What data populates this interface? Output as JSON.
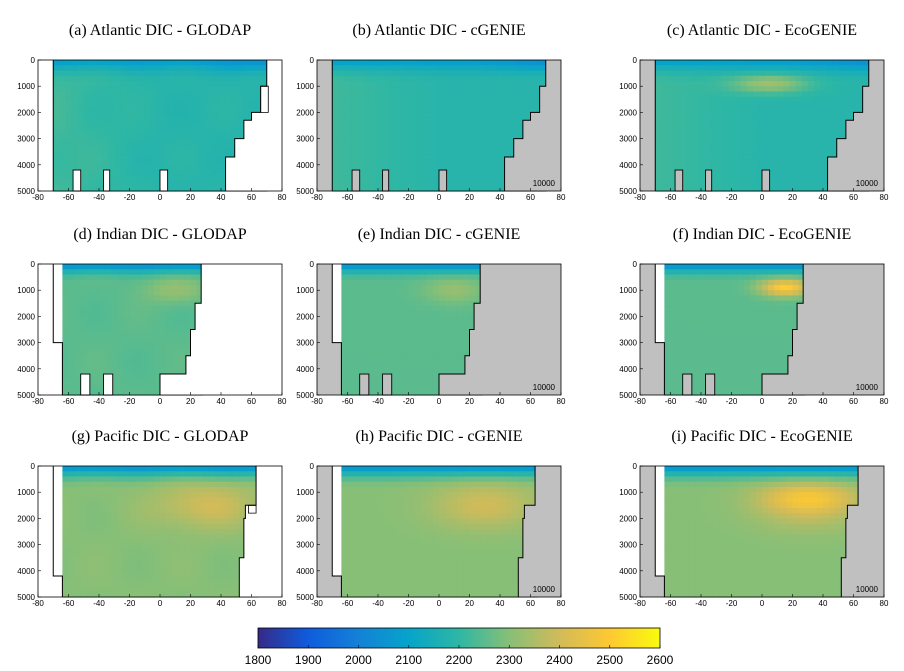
{
  "figure": {
    "colormap": "parula",
    "land_color": "#c0c0c0",
    "colorbar": {
      "min": 1800,
      "max": 2600,
      "ticks": [
        1800,
        1900,
        2000,
        2100,
        2200,
        2300,
        2400,
        2500,
        2600
      ]
    }
  },
  "chart_data": [
    {
      "type": "heatmap",
      "title": "(a) Atlantic DIC - GLODAP",
      "basin": "atlantic",
      "source": "glodap",
      "x_ticks": [
        -80,
        -60,
        -40,
        -20,
        0,
        20,
        40,
        60,
        80
      ],
      "y_ticks": [
        0,
        1000,
        2000,
        3000,
        4000,
        5000
      ],
      "xlim": [
        -80,
        80
      ],
      "ylim": [
        5000,
        0
      ],
      "annotation": ""
    },
    {
      "type": "heatmap",
      "title": "(b) Atlantic DIC - cGENIE",
      "basin": "atlantic",
      "source": "cgenie",
      "x_ticks": [
        -80,
        -60,
        -40,
        -20,
        0,
        20,
        40,
        60,
        80
      ],
      "y_ticks": [
        0,
        1000,
        2000,
        3000,
        4000,
        5000
      ],
      "xlim": [
        -80,
        80
      ],
      "ylim": [
        5000,
        0
      ],
      "annotation": "10000"
    },
    {
      "type": "heatmap",
      "title": "(c) Atlantic DIC - EcoGENIE",
      "basin": "atlantic",
      "source": "ecogenie",
      "x_ticks": [
        -80,
        -60,
        -40,
        -20,
        0,
        20,
        40,
        60,
        80
      ],
      "y_ticks": [
        0,
        1000,
        2000,
        3000,
        4000,
        5000
      ],
      "xlim": [
        -80,
        80
      ],
      "ylim": [
        5000,
        0
      ],
      "annotation": "10000"
    },
    {
      "type": "heatmap",
      "title": "(d) Indian DIC - GLODAP",
      "basin": "indian",
      "source": "glodap",
      "x_ticks": [
        -80,
        -60,
        -40,
        -20,
        0,
        20,
        40,
        60,
        80
      ],
      "y_ticks": [
        0,
        1000,
        2000,
        3000,
        4000,
        5000
      ],
      "xlim": [
        -80,
        80
      ],
      "ylim": [
        5000,
        0
      ],
      "annotation": ""
    },
    {
      "type": "heatmap",
      "title": "(e) Indian DIC - cGENIE",
      "basin": "indian",
      "source": "cgenie",
      "x_ticks": [
        -80,
        -60,
        -40,
        -20,
        0,
        20,
        40,
        60,
        80
      ],
      "y_ticks": [
        0,
        1000,
        2000,
        3000,
        4000,
        5000
      ],
      "xlim": [
        -80,
        80
      ],
      "ylim": [
        5000,
        0
      ],
      "annotation": "10000"
    },
    {
      "type": "heatmap",
      "title": "(f) Indian DIC - EcoGENIE",
      "basin": "indian",
      "source": "ecogenie",
      "x_ticks": [
        -80,
        -60,
        -40,
        -20,
        0,
        20,
        40,
        60,
        80
      ],
      "y_ticks": [
        0,
        1000,
        2000,
        3000,
        4000,
        5000
      ],
      "xlim": [
        -80,
        80
      ],
      "ylim": [
        5000,
        0
      ],
      "annotation": "10000"
    },
    {
      "type": "heatmap",
      "title": "(g) Pacific DIC - GLODAP",
      "basin": "pacific",
      "source": "glodap",
      "x_ticks": [
        -80,
        -60,
        -40,
        -20,
        0,
        20,
        40,
        60,
        80
      ],
      "y_ticks": [
        0,
        1000,
        2000,
        3000,
        4000,
        5000
      ],
      "xlim": [
        -80,
        80
      ],
      "ylim": [
        5000,
        0
      ],
      "annotation": ""
    },
    {
      "type": "heatmap",
      "title": "(h) Pacific DIC - cGENIE",
      "basin": "pacific",
      "source": "cgenie",
      "x_ticks": [
        -80,
        -60,
        -40,
        -20,
        0,
        20,
        40,
        60,
        80
      ],
      "y_ticks": [
        0,
        1000,
        2000,
        3000,
        4000,
        5000
      ],
      "xlim": [
        -80,
        80
      ],
      "ylim": [
        5000,
        0
      ],
      "annotation": "10000"
    },
    {
      "type": "heatmap",
      "title": "(i) Pacific DIC - EcoGENIE",
      "basin": "pacific",
      "source": "ecogenie",
      "x_ticks": [
        -80,
        -60,
        -40,
        -20,
        0,
        20,
        40,
        60,
        80
      ],
      "y_ticks": [
        0,
        1000,
        2000,
        3000,
        4000,
        5000
      ],
      "xlim": [
        -80,
        80
      ],
      "ylim": [
        5000,
        0
      ],
      "annotation": "10000"
    }
  ]
}
